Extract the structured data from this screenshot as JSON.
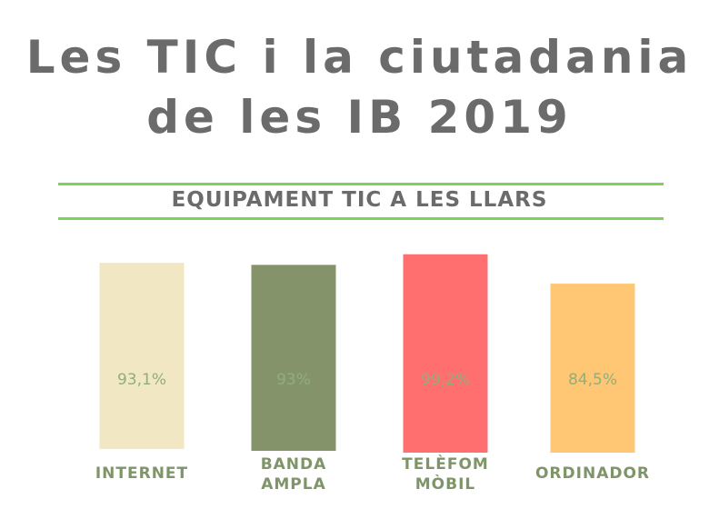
{
  "chart_data": {
    "type": "bar",
    "title": "Les TIC i la ciutadania de les IB 2019",
    "subtitle": "EQUIPAMENT TIC A LES LLARS",
    "categories": [
      [
        "INTERNET"
      ],
      [
        "BANDA",
        "AMPLA"
      ],
      [
        "TELÈFOM",
        "MÒBIL"
      ],
      [
        "ORDINADOR"
      ]
    ],
    "values": [
      93.1,
      93,
      99.2,
      84.5
    ],
    "value_labels": [
      "93,1%",
      "93%",
      "99,2%",
      "84,5%"
    ],
    "colors": [
      "#f1e7c3",
      "#85936b",
      "#ff6f6f",
      "#ffc774"
    ],
    "xlabel": "",
    "ylabel": "",
    "grid": false
  }
}
